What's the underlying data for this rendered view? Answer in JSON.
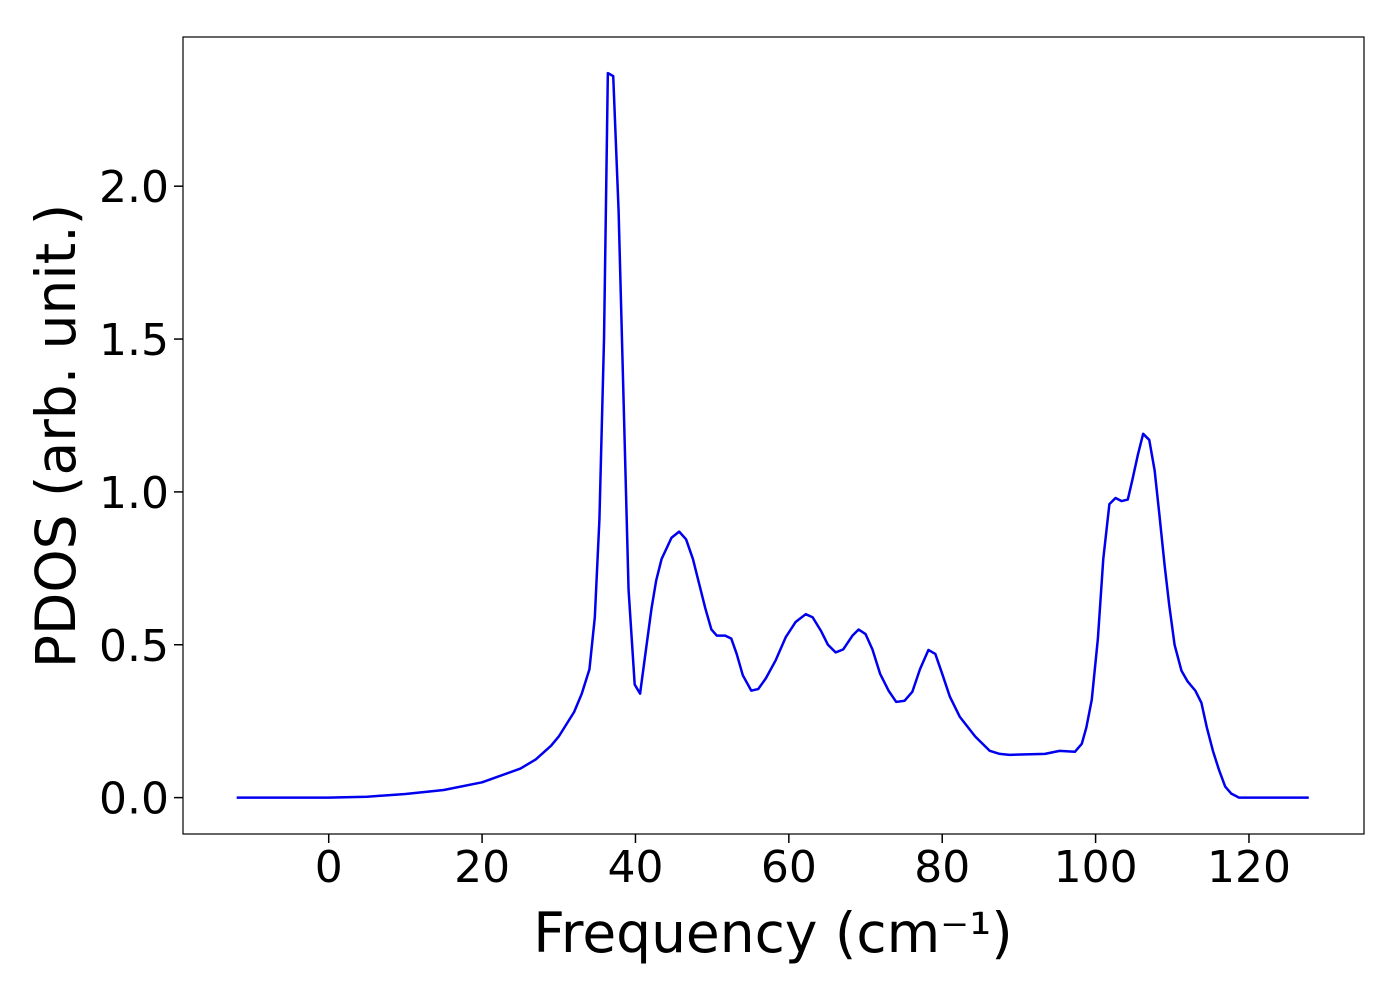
{
  "chart_data": {
    "type": "line",
    "x_label": "Frequency (cm⁻¹)",
    "y_label": "PDOS (arb. unit.)",
    "color": "#0000ee",
    "x": [
      -12,
      -6,
      0,
      5,
      10,
      15,
      20,
      25,
      27,
      29,
      30,
      31,
      32,
      33,
      34,
      34.7,
      35.3,
      35.9,
      36.4,
      37.1,
      37.8,
      39.1,
      39.9,
      40.6,
      41.4,
      42.1,
      42.7,
      43.4,
      44.7,
      45.7,
      46.6,
      47.5,
      48.3,
      49.1,
      49.9,
      50.6,
      51.7,
      52.5,
      53.2,
      54.0,
      55.1,
      56.0,
      57.0,
      58.3,
      59.6,
      60.9,
      62.2,
      63.1,
      64.2,
      65.1,
      66.1,
      67.1,
      68.3,
      69.1,
      70.0,
      70.9,
      71.9,
      73.0,
      74.0,
      75.1,
      76.1,
      77.1,
      78.2,
      79.1,
      80.0,
      81.0,
      82.3,
      84.3,
      86.2,
      87.5,
      88.8,
      93.4,
      95.3,
      97.3,
      98.2,
      98.8,
      99.5,
      100.3,
      101.0,
      101.8,
      102.6,
      103.4,
      104.2,
      104.8,
      105.5,
      106.2,
      107.0,
      107.7,
      108.3,
      109.0,
      109.6,
      110.3,
      111.2,
      112.0,
      113.0,
      113.8,
      114.5,
      115.3,
      116.1,
      116.9,
      117.7,
      118.7,
      127.8
    ],
    "values": [
      0,
      0,
      0,
      0.003,
      0.012,
      0.025,
      0.05,
      0.095,
      0.125,
      0.17,
      0.2,
      0.24,
      0.28,
      0.34,
      0.42,
      0.59,
      0.91,
      1.5,
      2.37,
      2.36,
      1.92,
      0.68,
      0.37,
      0.34,
      0.49,
      0.62,
      0.71,
      0.78,
      0.85,
      0.87,
      0.845,
      0.78,
      0.7,
      0.62,
      0.55,
      0.53,
      0.53,
      0.52,
      0.47,
      0.4,
      0.35,
      0.355,
      0.39,
      0.45,
      0.525,
      0.575,
      0.6,
      0.59,
      0.545,
      0.5,
      0.475,
      0.485,
      0.53,
      0.55,
      0.535,
      0.485,
      0.405,
      0.35,
      0.313,
      0.317,
      0.346,
      0.42,
      0.483,
      0.47,
      0.405,
      0.33,
      0.264,
      0.2,
      0.153,
      0.143,
      0.14,
      0.143,
      0.153,
      0.15,
      0.176,
      0.23,
      0.32,
      0.52,
      0.78,
      0.96,
      0.98,
      0.97,
      0.975,
      1.04,
      1.12,
      1.19,
      1.17,
      1.07,
      0.93,
      0.76,
      0.63,
      0.5,
      0.415,
      0.38,
      0.35,
      0.31,
      0.23,
      0.153,
      0.09,
      0.036,
      0.013,
      0,
      0
    ],
    "xlim": [
      -19,
      135
    ],
    "xticks": [
      0,
      20,
      40,
      60,
      80,
      100,
      120
    ],
    "ylim": [
      -0.119,
      2.488
    ],
    "yticks": [
      {
        "value": 0,
        "label": "0.0"
      },
      {
        "value": 0.5,
        "label": "0.5"
      },
      {
        "value": 1,
        "label": "1.0"
      },
      {
        "value": 1.5,
        "label": "1.5"
      },
      {
        "value": 2,
        "label": "2.0"
      }
    ]
  }
}
